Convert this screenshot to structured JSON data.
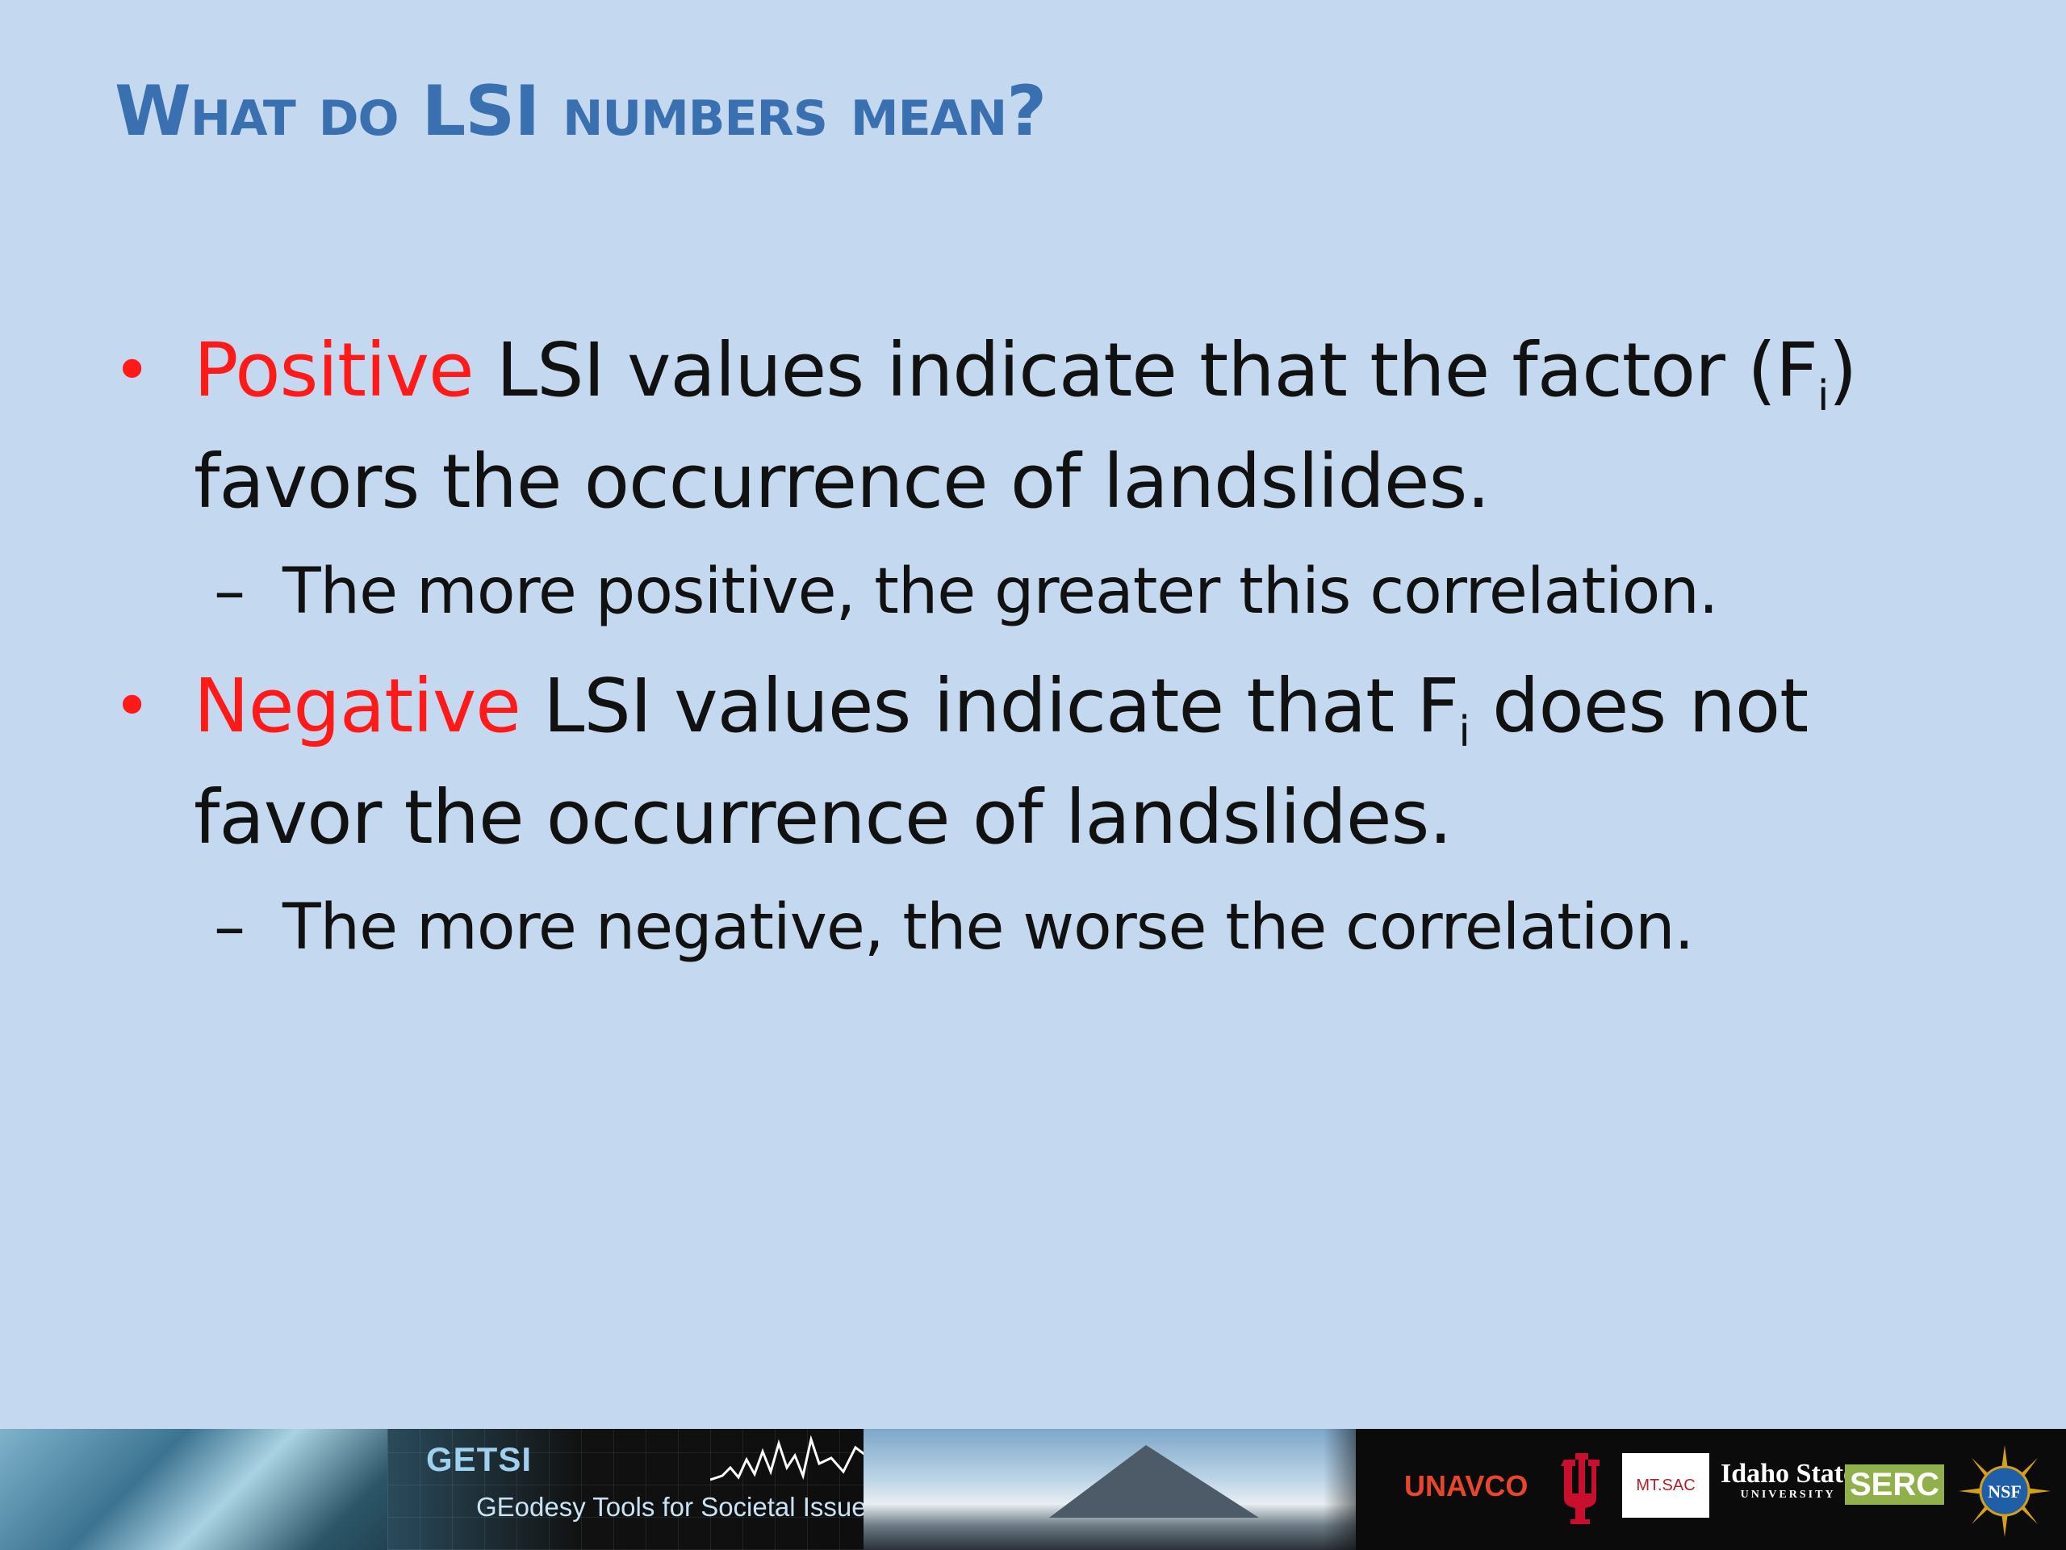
{
  "slide": {
    "title": "What do LSI numbers mean?",
    "bullets": [
      {
        "keyword": "Positive",
        "text_before_sub": " LSI values indicate that the factor (F",
        "subscript": "i",
        "text_after_sub": ") favors the occurrence of landslides.",
        "subpoint": "The more positive, the greater this correlation."
      },
      {
        "keyword": "Negative",
        "text_before_sub": " LSI values indicate that F",
        "subscript": "i",
        "text_after_sub": " does not favor the occurrence of landslides.",
        "subpoint": "The more negative, the worse the correlation."
      }
    ],
    "bullet_symbol": "•",
    "sub_symbol": "–",
    "colors": {
      "background": "#c4d9f0",
      "title": "#3a6fb0",
      "keyword": "#ff1a1a",
      "text": "#111111"
    }
  },
  "footer": {
    "project": "GETSI",
    "tagline": "GEodesy Tools for Societal Issues",
    "logos": {
      "unavco": "UNAVCO",
      "iu": "IU",
      "mtsac": "MT.SAC",
      "isu": "Idaho State",
      "isu_sub": "UNIVERSITY",
      "serc": "SERC",
      "nsf": "NSF"
    }
  }
}
